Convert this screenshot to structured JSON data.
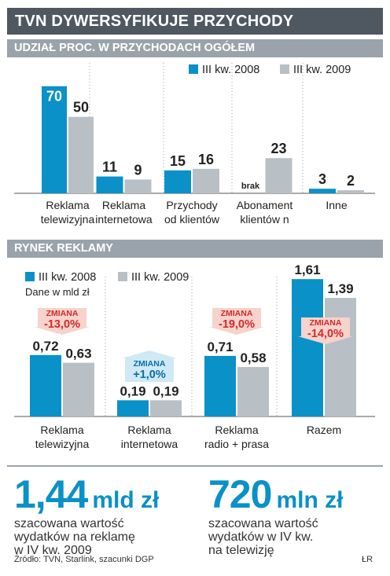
{
  "title": "TVN DYWERSYFIKUJE PRZYCHODY",
  "colors": {
    "blue": "#0a91c7",
    "gray": "#b8c0c6",
    "dark": "#4f5861",
    "red": "#d42a2a"
  },
  "chart_data": [
    {
      "type": "bar",
      "title": "UDZIAŁ PROC. W PRZYCHODACH OGÓŁEM",
      "categories": [
        [
          "Reklama",
          "telewizyjna"
        ],
        [
          "Reklama",
          "internetowa"
        ],
        [
          "Przychody",
          "od klientów"
        ],
        [
          "Abonament",
          "klientów n"
        ],
        [
          "Inne"
        ]
      ],
      "series": [
        {
          "name": "III kw. 2008",
          "values": [
            70,
            11,
            15,
            null,
            3
          ],
          "labels": [
            "70",
            "11",
            "15",
            "brak",
            "3"
          ]
        },
        {
          "name": "III kw. 2009",
          "values": [
            50,
            9,
            16,
            23,
            2
          ],
          "labels": [
            "50",
            "9",
            "16",
            "23",
            "2"
          ]
        }
      ],
      "ylim": [
        0,
        75
      ],
      "legend": "top-right"
    },
    {
      "type": "bar",
      "title": "RYNEK REKLAMY",
      "unit_note": "Dane w mld zł",
      "categories": [
        [
          "Reklama",
          "telewizyjna"
        ],
        [
          "Reklama",
          "internetowa"
        ],
        [
          "Reklama",
          "radio + prasa"
        ],
        [
          "Razem"
        ]
      ],
      "series": [
        {
          "name": "III kw. 2008",
          "values": [
            0.72,
            0.19,
            0.71,
            1.61
          ],
          "labels": [
            "0,72",
            "0,19",
            "0,71",
            "1,61"
          ]
        },
        {
          "name": "III kw. 2009",
          "values": [
            0.63,
            0.19,
            0.58,
            1.39
          ],
          "labels": [
            "0,63",
            "0,19",
            "0,58",
            "1,39"
          ]
        }
      ],
      "changes": [
        {
          "label": "ZMIANA",
          "value": "-13,0%",
          "direction": "down"
        },
        {
          "label": "ZMIANA",
          "value": "+1,0%",
          "direction": "up"
        },
        {
          "label": "ZMIANA",
          "value": "-19,0%",
          "direction": "down"
        },
        {
          "label": "ZMIANA",
          "value": "-14,0%",
          "direction": "down"
        }
      ],
      "ylim": [
        0,
        1.75
      ],
      "legend": "top-left"
    }
  ],
  "summary": [
    {
      "value": "1,44",
      "unit": "mld zł",
      "desc": [
        "szacowana wartość",
        "wydatków na reklamę",
        "w IV kw. 2009"
      ]
    },
    {
      "value": "720",
      "unit": "mln zł",
      "desc": [
        "szacowana wartość",
        "wydatków w IV kw.",
        "na telewizję"
      ]
    }
  ],
  "footer": {
    "source": "Źródło: TVN, Starlink, szacunki DGP",
    "author": "ŁR"
  }
}
